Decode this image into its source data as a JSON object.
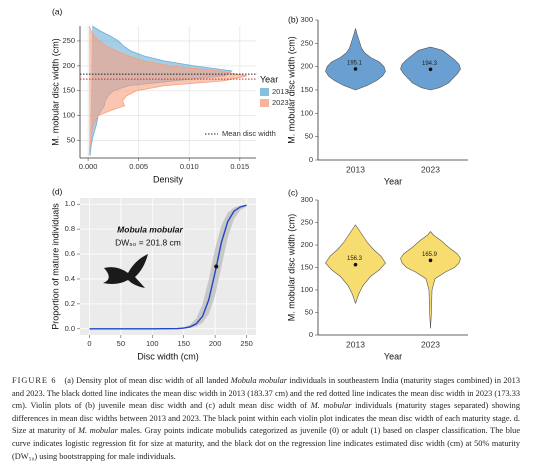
{
  "chart_data": [
    {
      "type": "density",
      "panel": "(a)",
      "xlabel": "Density",
      "ylabel": "M. mobular disc width (cm)",
      "xlim": [
        -0.0008,
        0.0166
      ],
      "xticks": [
        {
          "value": 0,
          "label": "0.000"
        },
        {
          "value": 0.005,
          "label": "0.005"
        },
        {
          "value": 0.01,
          "label": "0.010"
        },
        {
          "value": 0.015,
          "label": "0.015"
        }
      ],
      "ylim": [
        15,
        280
      ],
      "yticks": [
        50,
        100,
        150,
        200,
        250
      ],
      "grid": true,
      "legend_title": "Year",
      "y": [
        20,
        40,
        60,
        80,
        100,
        110,
        120,
        130,
        140,
        150,
        160,
        170,
        180,
        190,
        200,
        210,
        220,
        230,
        240,
        250,
        260,
        270,
        280
      ],
      "series": [
        {
          "name": "2013",
          "color": "#6aaed6",
          "values": [
            0.0002,
            0.0003,
            0.0005,
            0.0008,
            0.001,
            0.0013,
            0.0016,
            0.0017,
            0.002,
            0.0025,
            0.004,
            0.0085,
            0.0135,
            0.0142,
            0.0105,
            0.0075,
            0.0055,
            0.0042,
            0.0035,
            0.003,
            0.0022,
            0.0012,
            0.0004
          ]
        },
        {
          "name": "2023",
          "color": "#f6a07e",
          "values": [
            0.0001,
            0.0002,
            0.0003,
            0.0005,
            0.001,
            0.0022,
            0.0036,
            0.0034,
            0.0038,
            0.0048,
            0.0075,
            0.0135,
            0.0157,
            0.0128,
            0.0082,
            0.0055,
            0.004,
            0.0028,
            0.0018,
            0.0011,
            0.0006,
            0.0003,
            0.0001
          ]
        }
      ],
      "mean_legend": "Mean disc width",
      "means": [
        {
          "value": 183.37,
          "color": "#222222"
        },
        {
          "value": 173.33,
          "color": "#d62728"
        }
      ]
    },
    {
      "type": "violin",
      "panel": "(b)",
      "xlabel": "Year",
      "ylabel": "M. mobular disc width (cm)",
      "categories": [
        "2013",
        "2023"
      ],
      "color": "#6a9fd2",
      "ylim": [
        0,
        300
      ],
      "yticks": [
        0,
        50,
        100,
        150,
        200,
        250,
        300
      ],
      "violins": [
        {
          "y": [
            150,
            160,
            170,
            180,
            190,
            200,
            210,
            220,
            230,
            240,
            250,
            260,
            270,
            282
          ],
          "density": [
            0,
            0.4,
            0.7,
            0.9,
            1,
            0.95,
            0.8,
            0.5,
            0.3,
            0.2,
            0.15,
            0.1,
            0.05,
            0
          ],
          "mean": 195.1
        },
        {
          "y": [
            150,
            155,
            165,
            175,
            185,
            195,
            205,
            215,
            225,
            235,
            242
          ],
          "density": [
            0,
            0.3,
            0.6,
            0.75,
            0.9,
            1,
            0.95,
            0.8,
            0.6,
            0.4,
            0
          ],
          "mean": 194.3
        }
      ]
    },
    {
      "type": "logistic",
      "panel": "(d)",
      "xlabel": "Disc width (cm)",
      "ylabel": "Proportion of mature individuals",
      "xlim": [
        -15,
        265
      ],
      "xticks": [
        0,
        50,
        100,
        150,
        200,
        250
      ],
      "ylim": [
        -0.05,
        1.05
      ],
      "yticks": [
        {
          "value": 0,
          "label": "0.0"
        },
        {
          "value": 0.2,
          "label": "0.2"
        },
        {
          "value": 0.4,
          "label": "0.4"
        },
        {
          "value": 0.6,
          "label": "0.6"
        },
        {
          "value": 0.8,
          "label": "0.8"
        },
        {
          "value": 1,
          "label": "1.0"
        }
      ],
      "grid": true,
      "background": "#ebebeb",
      "color": "#2146c7",
      "x": [
        0,
        50,
        100,
        140,
        150,
        160,
        170,
        180,
        190,
        200,
        210,
        220,
        230,
        240,
        250
      ],
      "values": [
        0,
        0,
        0,
        0.002,
        0.006,
        0.015,
        0.04,
        0.1,
        0.235,
        0.455,
        0.694,
        0.86,
        0.944,
        0.978,
        0.992
      ],
      "ci_lower": [
        0,
        0,
        0,
        0.001,
        0.002,
        0.007,
        0.018,
        0.047,
        0.119,
        0.269,
        0.5,
        0.731,
        0.881,
        0.953,
        0.982
      ],
      "ci_upper": [
        0,
        0,
        0,
        0.004,
        0.012,
        0.032,
        0.083,
        0.198,
        0.401,
        0.646,
        0.832,
        0.931,
        0.973,
        0.99,
        0.996
      ],
      "dw50": 201.8,
      "dw50_prob": 0.5,
      "annotation_species": "Mobula mobular",
      "annotation_text": "DW₅₀ = 201.8 cm"
    },
    {
      "type": "violin",
      "panel": "(c)",
      "xlabel": "Year",
      "ylabel": "M. mobular disc width (cm)",
      "categories": [
        "2013",
        "2023"
      ],
      "color": "#f7dc6f",
      "ylim": [
        0,
        300
      ],
      "yticks": [
        0,
        50,
        100,
        150,
        200,
        250,
        300
      ],
      "violins": [
        {
          "y": [
            70,
            90,
            110,
            130,
            145,
            160,
            175,
            190,
            205,
            220,
            235,
            245
          ],
          "density": [
            0,
            0.1,
            0.25,
            0.5,
            0.8,
            1,
            0.85,
            0.6,
            0.4,
            0.25,
            0.1,
            0
          ],
          "mean": 156.3
        },
        {
          "y": [
            15,
            50,
            100,
            125,
            140,
            150,
            160,
            170,
            180,
            195,
            210,
            222,
            230
          ],
          "density": [
            0,
            0.03,
            0.05,
            0.15,
            0.5,
            0.8,
            0.95,
            1,
            0.9,
            0.6,
            0.35,
            0.1,
            0
          ],
          "mean": 165.9
        }
      ]
    }
  ],
  "caption": {
    "label": "FIGURE 6",
    "segments": [
      {
        "text": "(a) Density plot of mean disc width of all landed ",
        "italic": false
      },
      {
        "text": "Mobula mobular",
        "italic": true
      },
      {
        "text": " individuals in southeastern India (maturity stages combined) in 2013 and 2023. The black dotted line indicates the mean disc width in 2013 (183.37 cm) and the red dotted line indicates the mean disc width in 2023 (173.33 cm). Violin plots of (b) juvenile mean disc width and (c) adult mean disc width of ",
        "italic": false
      },
      {
        "text": "M. mobular",
        "italic": true
      },
      {
        "text": " individuals (maturity stages separated) showing differences in mean disc widths between 2013 and 2023. The black point within each violin plot indicates the mean disc width of each maturity stage. d. Size at maturity of ",
        "italic": false
      },
      {
        "text": "M. mobular",
        "italic": true
      },
      {
        "text": " males. Gray points indicate mobulids categorized as juvenile (0) or adult (1) based on clasper classification. The blue curve indicates logistic regression fit for size at maturity, and the black dot on the regression line indicates estimated disc width (cm) at 50% maturity (DW₅₀) using bootstrapping for male individuals.",
        "italic": false
      }
    ]
  }
}
